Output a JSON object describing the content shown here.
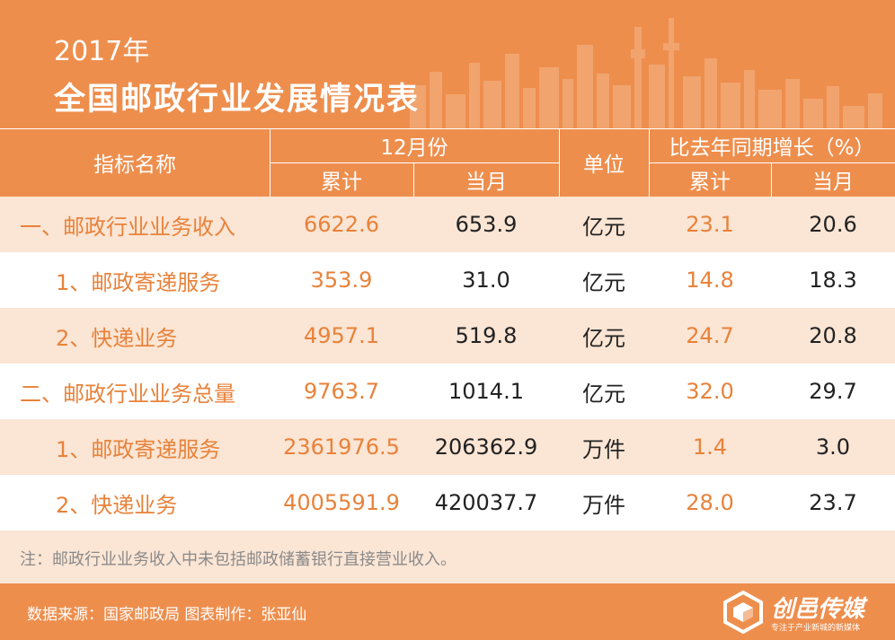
{
  "header": {
    "year": "2017年",
    "title": "全国邮政行业发展情况表"
  },
  "table": {
    "col_indicator": "指标名称",
    "col_december": "12月份",
    "col_unit": "单位",
    "col_growth": "比去年同期增长（%）",
    "sub_cumulative": "累计",
    "sub_month": "当月",
    "sub_growth_cumulative": "累计",
    "sub_growth_month": "当月",
    "rows": [
      {
        "name": "一、邮政行业业务收入",
        "cum": "6622.6",
        "month": "653.9",
        "unit": "亿元",
        "g_cum": "23.1",
        "g_month": "20.6"
      },
      {
        "name": "1、邮政寄递服务",
        "cum": "353.9",
        "month": "31.0",
        "unit": "亿元",
        "g_cum": "14.8",
        "g_month": "18.3"
      },
      {
        "name": "2、快递业务",
        "cum": "4957.1",
        "month": "519.8",
        "unit": "亿元",
        "g_cum": "24.7",
        "g_month": "20.8"
      },
      {
        "name": "二、邮政行业业务总量",
        "cum": "9763.7",
        "month": "1014.1",
        "unit": "亿元",
        "g_cum": "32.0",
        "g_month": "29.7"
      },
      {
        "name": "1、邮政寄递服务",
        "cum": "2361976.5",
        "month": "206362.9",
        "unit": "万件",
        "g_cum": "1.4",
        "g_month": "3.0"
      },
      {
        "name": "2、快递业务",
        "cum": "4005591.9",
        "month": "420037.7",
        "unit": "万件",
        "g_cum": "28.0",
        "g_month": "23.7"
      }
    ]
  },
  "note": "注：邮政行业业务收入中未包括邮政储蓄银行直接营业收入。",
  "footer": {
    "source": "数据来源：国家邮政局  图表制作：张亚仙",
    "logo_name": "创邑传媒",
    "logo_slogan": "专注于产业新城的新媒体"
  },
  "colors": {
    "accent": "#ee8e4d",
    "row_tint": "#fbe5d4",
    "orange_text": "#e8823a"
  }
}
